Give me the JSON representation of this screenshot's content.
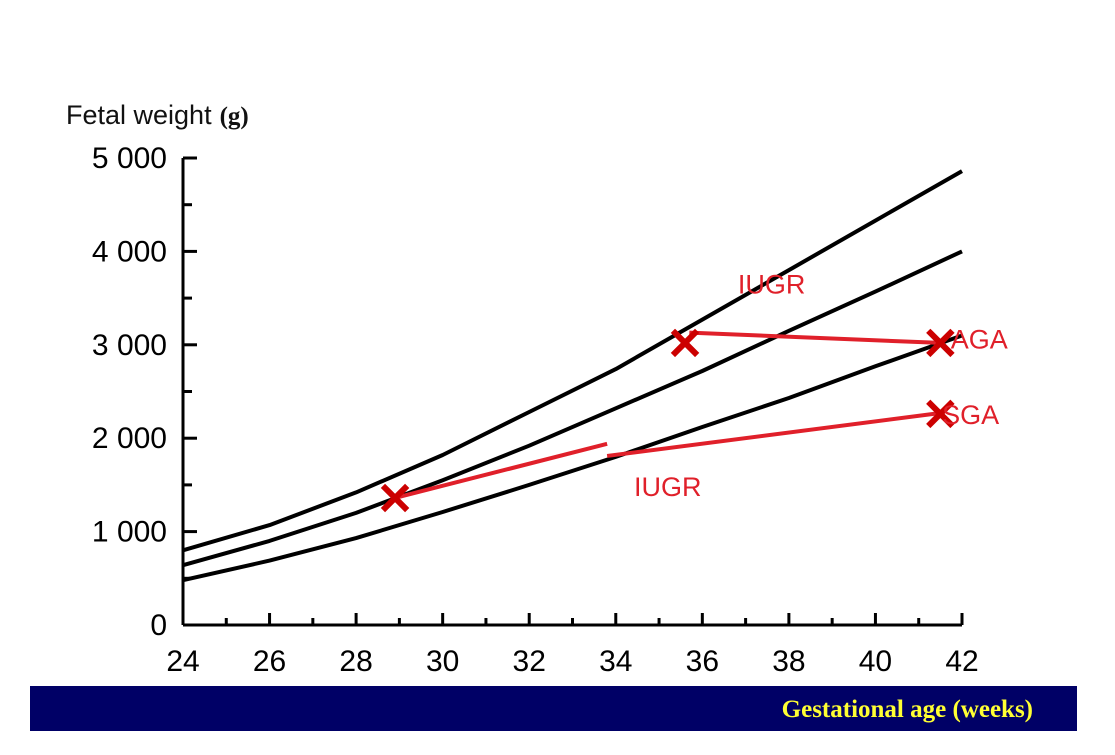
{
  "chart_data": {
    "type": "line",
    "ylabel": "Fetal weight",
    "ylabel_unit": "(g)",
    "xlabel": "Gestational age (weeks)",
    "xlim": [
      24,
      42
    ],
    "ylim": [
      0,
      5000
    ],
    "xticks": [
      24,
      26,
      28,
      30,
      32,
      34,
      36,
      38,
      40,
      42
    ],
    "xtick_labels": [
      "24",
      "26",
      "28",
      "30",
      "32",
      "34",
      "36",
      "38",
      "40",
      "42"
    ],
    "yticks": [
      0,
      1000,
      2000,
      3000,
      4000,
      5000
    ],
    "ytick_labels": [
      "0",
      "1 000",
      "2 000",
      "3 000",
      "4 000",
      "5 000"
    ],
    "series": [
      {
        "color": "#000000",
        "x": [
          24,
          26,
          28,
          30,
          32,
          34,
          36,
          38,
          40,
          42
        ],
        "y": [
          800,
          1070,
          1420,
          1820,
          2280,
          2740,
          3270,
          3800,
          4330,
          4860
        ]
      },
      {
        "color": "#000000",
        "x": [
          24,
          26,
          28,
          30,
          32,
          34,
          36,
          38,
          40,
          42
        ],
        "y": [
          640,
          900,
          1200,
          1550,
          1920,
          2320,
          2720,
          3150,
          3570,
          4000
        ]
      },
      {
        "color": "#000000",
        "x": [
          24,
          26,
          28,
          30,
          32,
          34,
          36,
          38,
          40,
          42
        ],
        "y": [
          480,
          690,
          930,
          1210,
          1500,
          1800,
          2120,
          2430,
          2770,
          3100
        ]
      }
    ],
    "trajectories": [
      {
        "color": "#e0202a",
        "x": [
          28.9,
          33.8
        ],
        "y": [
          1360,
          1940
        ]
      },
      {
        "color": "#e0202a",
        "x": [
          33.8,
          41.5
        ],
        "y": [
          1810,
          2270
        ]
      },
      {
        "color": "#e0202a",
        "x": [
          35.7,
          41.5
        ],
        "y": [
          3130,
          3020
        ]
      }
    ],
    "markers": [
      {
        "symbol": "x",
        "color": "#cc0000",
        "x": 28.9,
        "y": 1360
      },
      {
        "symbol": "x",
        "color": "#cc0000",
        "x": 35.6,
        "y": 3020
      },
      {
        "symbol": "x",
        "color": "#cc0000",
        "x": 41.5,
        "y": 3020
      },
      {
        "symbol": "x",
        "color": "#cc0000",
        "x": 41.5,
        "y": 2260
      }
    ],
    "annotations": [
      {
        "text": "IUGR",
        "color": "#e0202a",
        "x": 37.6,
        "y": 3550
      },
      {
        "text": "AGA",
        "color": "#e0202a",
        "x": 42.4,
        "y": 2960
      },
      {
        "text": "SGA",
        "color": "#e0202a",
        "x": 42.2,
        "y": 2150
      },
      {
        "text": "IUGR",
        "color": "#e0202a",
        "x": 35.2,
        "y": 1380
      }
    ],
    "grid": false,
    "legend": "none"
  }
}
